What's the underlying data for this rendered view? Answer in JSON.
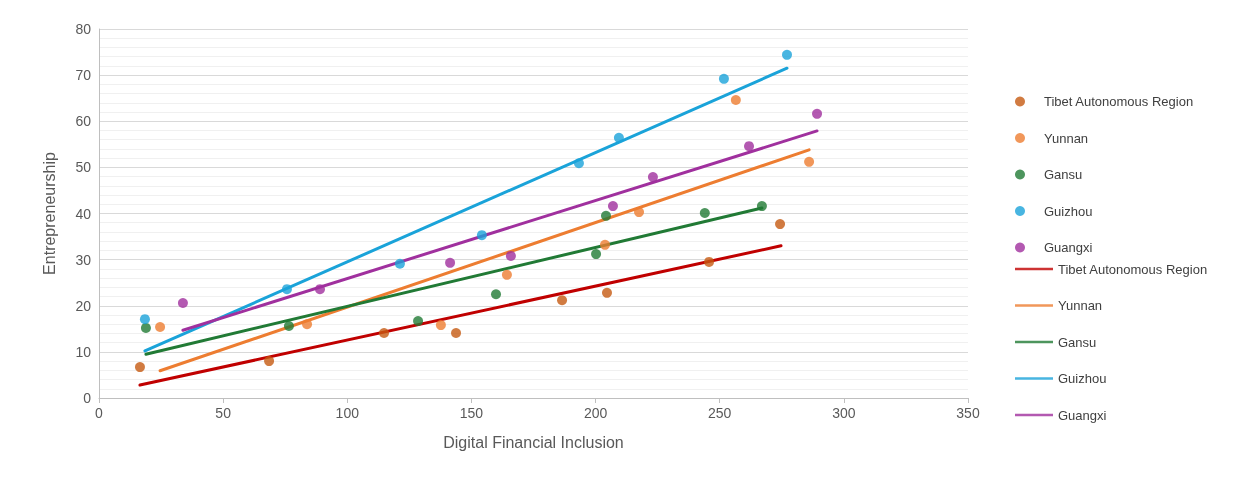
{
  "chart_data": {
    "type": "scatter",
    "xlabel": "Digital Financial Inclusion",
    "ylabel": "Entrepreneurship",
    "xlim": [
      0,
      350
    ],
    "xticks": [
      0,
      50,
      100,
      150,
      200,
      250,
      300,
      350
    ],
    "ylim": [
      0,
      80
    ],
    "yticks": [
      0,
      10,
      20,
      30,
      40,
      50,
      60,
      70,
      80
    ],
    "grid": "y",
    "legend": "right",
    "marker": "circle",
    "series": [
      {
        "name": "Tibet Autonomous Region",
        "color": "#c55a11",
        "x": [
          16.5,
          68.5,
          114.8,
          143.8,
          186.5,
          204.6,
          245.7,
          274.3
        ],
        "values": [
          6.7,
          8.0,
          14.1,
          14.1,
          21.2,
          22.8,
          29.5,
          37.7
        ]
      },
      {
        "name": "Yunnan",
        "color": "#ed7d31",
        "x": [
          24.6,
          83.8,
          137.7,
          164.3,
          203.8,
          217.5,
          256.5,
          286
        ],
        "values": [
          15.4,
          16.0,
          15.8,
          26.7,
          33.2,
          40.3,
          64.6,
          51.2
        ]
      },
      {
        "name": "Gansu",
        "color": "#217a35",
        "x": [
          18.9,
          76.5,
          128.5,
          159.9,
          200.2,
          204.2,
          244,
          267
        ],
        "values": [
          15.2,
          15.6,
          16.7,
          22.5,
          31.2,
          39.5,
          40.1,
          41.6
        ]
      },
      {
        "name": "Guizhou",
        "color": "#1aa3d9",
        "x": [
          18.5,
          75.7,
          121.2,
          154.2,
          193.3,
          209.4,
          251.7,
          277.1
        ],
        "values": [
          17.1,
          23.6,
          29.1,
          35.3,
          50.9,
          56.4,
          69.2,
          74.4
        ]
      },
      {
        "name": "Guangxi",
        "color": "#a0309e",
        "x": [
          33.8,
          89,
          141.4,
          165.9,
          207,
          223.1,
          261.8,
          289.2
        ],
        "values": [
          20.6,
          23.6,
          29.3,
          30.8,
          41.6,
          47.9,
          54.6,
          61.6
        ]
      },
      {
        "name": "Tibet Autonomous Region",
        "type": "line",
        "marker": "none",
        "color": "#c00000",
        "x": [
          16.5,
          274.7
        ],
        "values": [
          2.8,
          33.0
        ]
      },
      {
        "name": "Yunnan",
        "type": "line",
        "marker": "none",
        "color": "#ed7d31",
        "x": [
          24.6,
          286
        ],
        "values": [
          5.9,
          53.8
        ]
      },
      {
        "name": "Gansu",
        "type": "line",
        "marker": "none",
        "color": "#217a35",
        "x": [
          18.9,
          267
        ],
        "values": [
          9.5,
          41.2
        ]
      },
      {
        "name": "Guizhou",
        "type": "line",
        "marker": "none",
        "color": "#1aa3d9",
        "x": [
          18.5,
          277.1
        ],
        "values": [
          10.2,
          71.5
        ]
      },
      {
        "name": "Guangxi",
        "type": "line",
        "marker": "none",
        "color": "#a0309e",
        "x": [
          33.8,
          289.2
        ],
        "values": [
          14.7,
          57.9
        ]
      }
    ]
  }
}
